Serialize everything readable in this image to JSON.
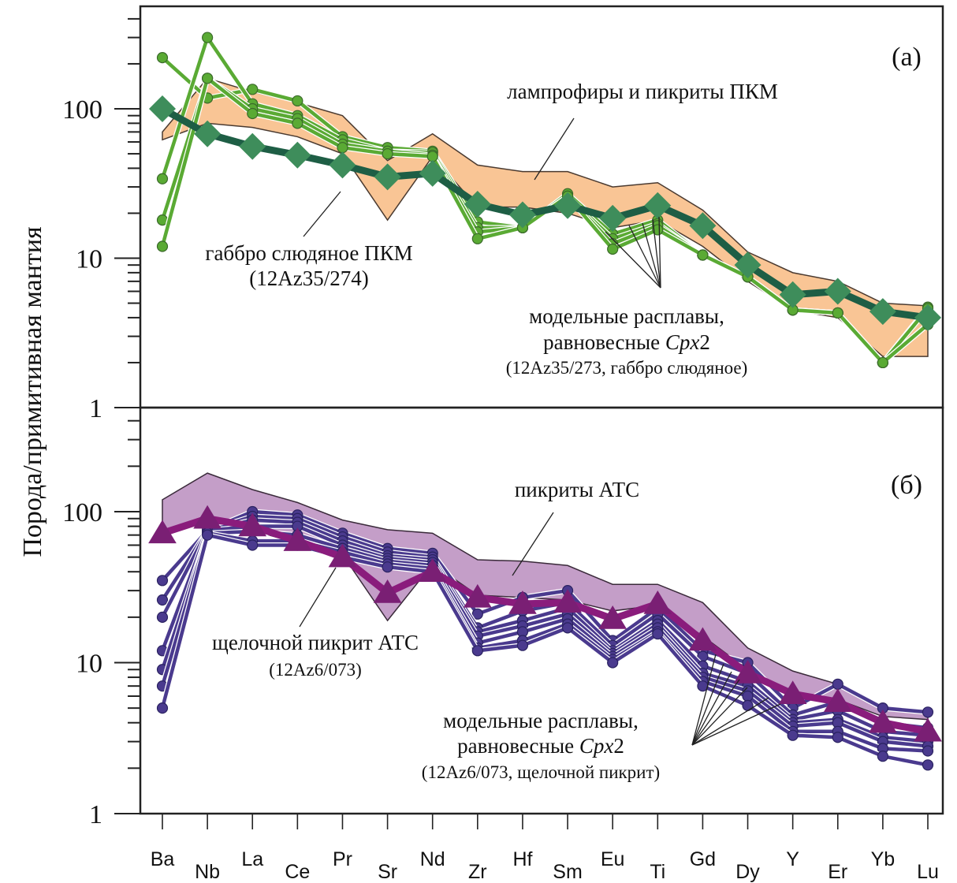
{
  "chart_data": {
    "type": "line",
    "y_axis_label": "Порода/примитивная мантия",
    "y_scale": "log",
    "categories": [
      "Ba",
      "Nb",
      "La",
      "Ce",
      "Pr",
      "Sr",
      "Nd",
      "Zr",
      "Hf",
      "Sm",
      "Eu",
      "Ti",
      "Gd",
      "Dy",
      "Y",
      "Er",
      "Yb",
      "Lu"
    ],
    "panels": [
      {
        "id": "a",
        "panel_label": "(a)",
        "ylim": [
          1,
          490
        ],
        "yticks": [
          1,
          10,
          100
        ],
        "ytick_labels": [
          "1",
          "10",
          "100"
        ],
        "colors": {
          "field_fill": "#f9c595",
          "field_stroke": "#4a3a30",
          "rock_line": "#1e5e45",
          "rock_marker": "#3e8d5b",
          "melt_line": "#5aaa34",
          "melt_marker": "#5aaa34",
          "melt_marker_stroke": "#3a6a2a"
        },
        "field": {
          "name": "лампрофиры и пикриты ПКМ",
          "upper": [
            70,
            160,
            130,
            110,
            90,
            45,
            68,
            42,
            38,
            38,
            30,
            32,
            21,
            11,
            8,
            7,
            5,
            4.8
          ],
          "lower": [
            62,
            80,
            75,
            65,
            50,
            18,
            48,
            22,
            22,
            20,
            16,
            18,
            12,
            7,
            4.5,
            4,
            2.2,
            2.2
          ]
        },
        "rock": {
          "name": "габбро слюдяное ПКМ",
          "sample": "(12Az35/274)",
          "marker": "diamond",
          "values": [
            100,
            68,
            56,
            49,
            42,
            35,
            37,
            23,
            19.5,
            22.5,
            18.5,
            22.5,
            16.5,
            9,
            5.7,
            6,
            4.4,
            4
          ]
        },
        "melts": {
          "name_line1": "модельные расплавы,",
          "name_line2_prefix": "равновесные ",
          "name_line2_italic": "Cpx",
          "name_line2_suffix": "2",
          "sample": "(12Az35/273, габбро слюдяное)",
          "marker": "circle",
          "series": [
            {
              "name": "melt-1",
              "values": [
                220,
                118,
                135,
                113,
                65,
                55,
                52,
                17.5,
                16,
                27,
                14.5,
                18,
                10.5,
                7.5,
                4.5,
                4.3,
                2,
                4.7
              ]
            },
            {
              "name": "melt-2",
              "values": [
                34,
                300,
                108,
                90,
                62,
                52,
                51,
                16,
                16,
                26,
                13.5,
                17,
                10.5,
                7.5,
                4.5,
                4.3,
                2,
                4.6
              ]
            },
            {
              "name": "melt-3",
              "values": [
                18,
                160,
                100,
                86,
                58,
                52,
                49,
                15,
                16,
                26,
                12.5,
                16.5,
                10.5,
                7.5,
                4.5,
                4.3,
                2,
                3.6
              ]
            },
            {
              "name": "melt-4",
              "values": [
                12,
                160,
                93,
                80,
                55,
                50,
                48,
                13.5,
                16,
                26,
                11.5,
                15.5,
                10.5,
                7.5,
                4.5,
                4.3,
                2,
                3.6
              ]
            }
          ]
        },
        "annotations": {
          "field_label": "лампрофиры и пикриты ПКМ",
          "rock_label": "габбро слюдяное ПКМ",
          "rock_sample": "(12Az35/274)",
          "melt_line1": "модельные расплавы,",
          "melt_line2": "равновесные Cpx2",
          "melt_sample": "(12Az35/273, габбро слюдяное)"
        }
      },
      {
        "id": "b",
        "panel_label": "(б)",
        "ylim": [
          1,
          490
        ],
        "yticks": [
          1,
          10,
          100
        ],
        "ytick_labels": [
          "1",
          "10",
          "100"
        ],
        "colors": {
          "field_fill": "#c49ec8",
          "field_stroke": "#3a2a3a",
          "rock_line": "#8a1c7c",
          "rock_marker": "#7a1f74",
          "melt_line": "#4a3a8e",
          "melt_marker": "#4a3a8e",
          "melt_marker_stroke": "#2a2260"
        },
        "field": {
          "name": "пикриты АТС",
          "upper": [
            120,
            180,
            140,
            115,
            88,
            76,
            72,
            48,
            47,
            44,
            33,
            33,
            25,
            12.5,
            8.8,
            7.2,
            5,
            4.8
          ],
          "lower": [
            75,
            85,
            75,
            62,
            52,
            19,
            45,
            28,
            27,
            26,
            22,
            24,
            15,
            9,
            6.3,
            5.7,
            4.4,
            4.2
          ]
        },
        "rock": {
          "name": "щелочной пикрит АТС",
          "sample": "(12Az6/073)",
          "marker": "triangle",
          "values": [
            72,
            90,
            80,
            64,
            50,
            29,
            40,
            27,
            24.5,
            25,
            19.5,
            24.5,
            14,
            8.5,
            6.2,
            5.5,
            4,
            3.5
          ]
        },
        "melts": {
          "name_line1": "модельные расплавы,",
          "name_line2_prefix": "равновесные ",
          "name_line2_italic": "Cpx",
          "name_line2_suffix": "2",
          "sample": "(12Az6/073, щелочной пикрит)",
          "marker": "circle",
          "series": [
            {
              "name": "melt-1",
              "values": [
                35,
                75,
                100,
                95,
                72,
                57,
                53,
                21,
                27,
                30,
                14,
                23,
                12,
                10,
                5,
                7.2,
                5,
                4.7
              ]
            },
            {
              "name": "melt-2",
              "values": [
                26,
                75,
                93,
                90,
                68,
                54,
                50,
                17,
                22,
                25,
                13,
                21,
                11,
                8.5,
                4.5,
                5.5,
                4,
                3.7
              ]
            },
            {
              "name": "melt-3",
              "values": [
                20,
                75,
                88,
                85,
                64,
                51,
                48,
                16,
                19,
                23,
                12,
                19,
                9.5,
                7.5,
                4.2,
                4.8,
                3.5,
                3.3
              ]
            },
            {
              "name": "melt-4",
              "values": [
                12,
                75,
                80,
                80,
                60,
                49,
                46,
                15,
                17.5,
                21,
                11.5,
                18,
                8.5,
                7,
                4,
                4.2,
                3.2,
                3
              ]
            },
            {
              "name": "melt-5",
              "values": [
                9,
                72,
                74,
                70,
                57,
                47,
                44,
                13.5,
                16,
                19.5,
                11,
                17,
                8,
                6.5,
                3.8,
                4,
                3,
                2.8
              ]
            },
            {
              "name": "melt-6",
              "values": [
                7,
                72,
                64,
                64,
                54,
                45,
                42,
                12.5,
                14,
                18,
                10.5,
                16,
                7.5,
                6,
                3.5,
                3.5,
                2.7,
                2.6
              ]
            },
            {
              "name": "melt-7",
              "values": [
                5,
                70,
                60,
                60,
                50,
                43,
                40,
                12,
                13,
                17,
                10,
                15.5,
                7,
                5.2,
                3.3,
                3.2,
                2.4,
                2.1
              ]
            }
          ]
        },
        "annotations": {
          "field_label": "пикриты АТС",
          "rock_label": "щелочной пикрит АТС",
          "rock_sample": "(12Az6/073)",
          "melt_line1": "модельные расплавы,",
          "melt_line2": "равновесные Cpx2",
          "melt_sample": "(12Az6/073, щелочной пикрит)"
        }
      }
    ]
  }
}
